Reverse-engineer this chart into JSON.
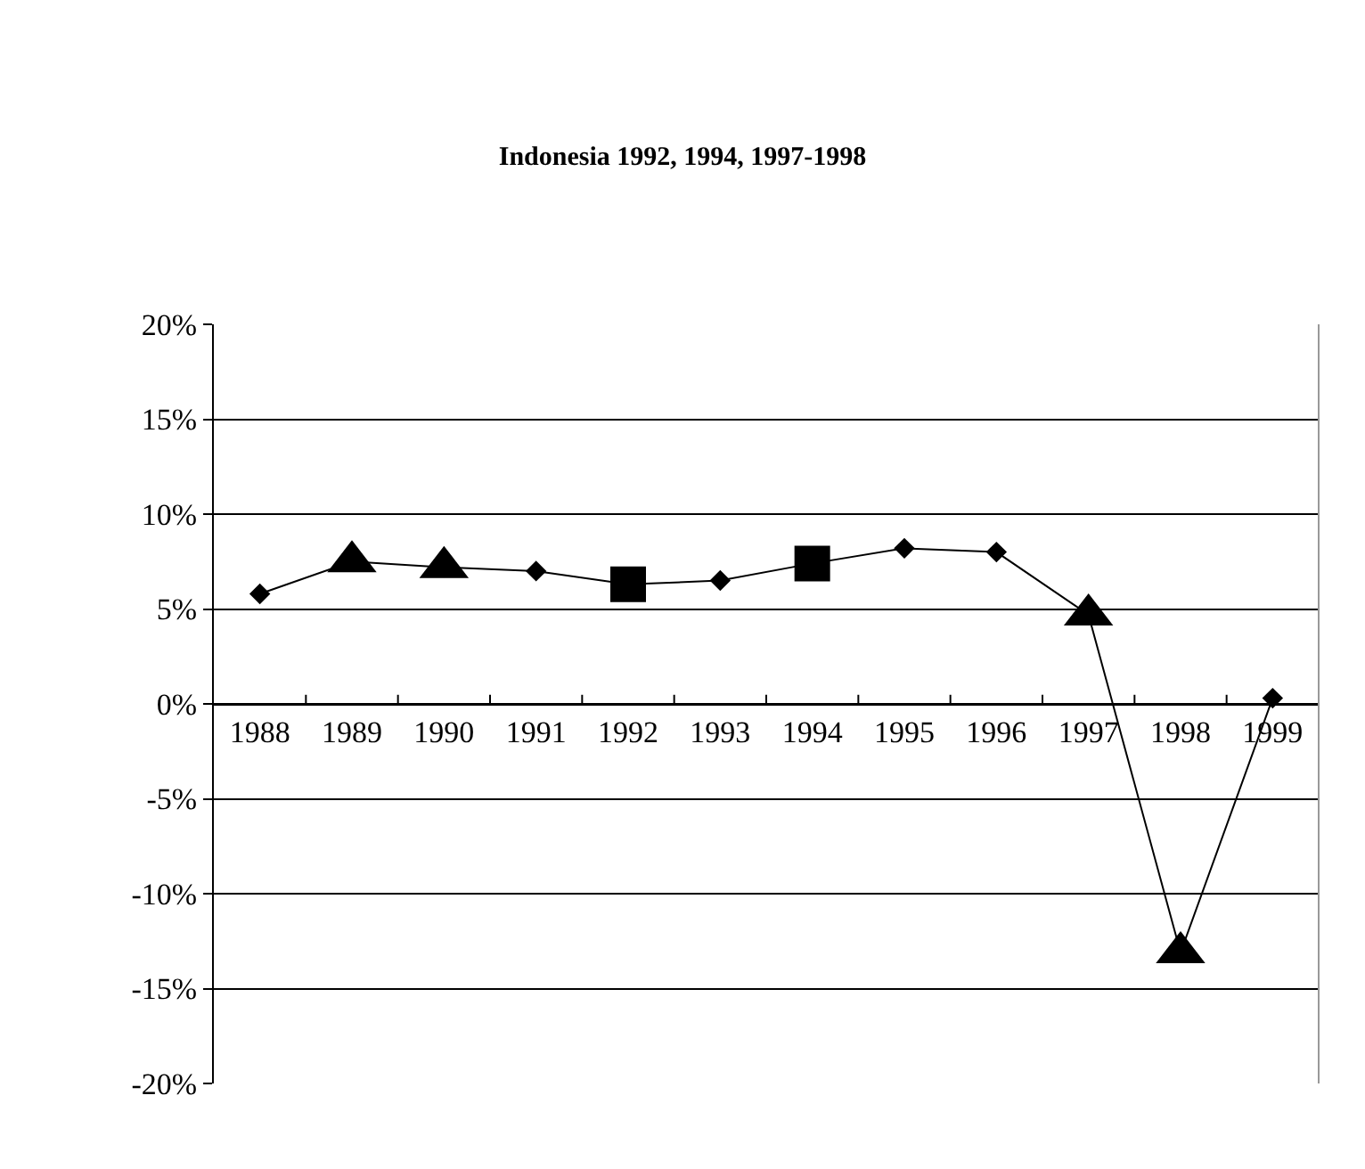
{
  "chart_data": {
    "type": "line",
    "title": "Indonesia 1992, 1994, 1997-1998",
    "categories": [
      "1988",
      "1989",
      "1990",
      "1991",
      "1992",
      "1993",
      "1994",
      "1995",
      "1996",
      "1997",
      "1998",
      "1999"
    ],
    "series": [
      {
        "color": "#000000",
        "marker": "diamond",
        "line_style": "solid",
        "values": [
          5.8,
          7.5,
          7.2,
          7.0,
          6.3,
          6.5,
          7.4,
          8.2,
          8.0,
          4.7,
          -13.1,
          0.3
        ]
      },
      {
        "type": "scatter",
        "color": "#000000",
        "marker": "triangle",
        "values": [
          null,
          7.5,
          7.2,
          null,
          null,
          null,
          null,
          null,
          null,
          4.7,
          -13.1,
          null
        ]
      },
      {
        "type": "scatter",
        "color": "#000000",
        "marker": "square",
        "values": [
          null,
          null,
          null,
          null,
          6.3,
          null,
          7.4,
          null,
          null,
          null,
          null,
          null
        ]
      }
    ],
    "ylim": [
      -20,
      20
    ],
    "yticks": [
      {
        "value": -20,
        "label": "-20%"
      },
      {
        "value": -15,
        "label": "-15%"
      },
      {
        "value": -10,
        "label": "-10%"
      },
      {
        "value": -5,
        "label": "-5%"
      },
      {
        "value": 0,
        "label": "0%"
      },
      {
        "value": 5,
        "label": "5%"
      },
      {
        "value": 10,
        "label": "10%"
      },
      {
        "value": 15,
        "label": "15%"
      },
      {
        "value": 20,
        "label": "20%"
      }
    ],
    "grid": "y"
  }
}
